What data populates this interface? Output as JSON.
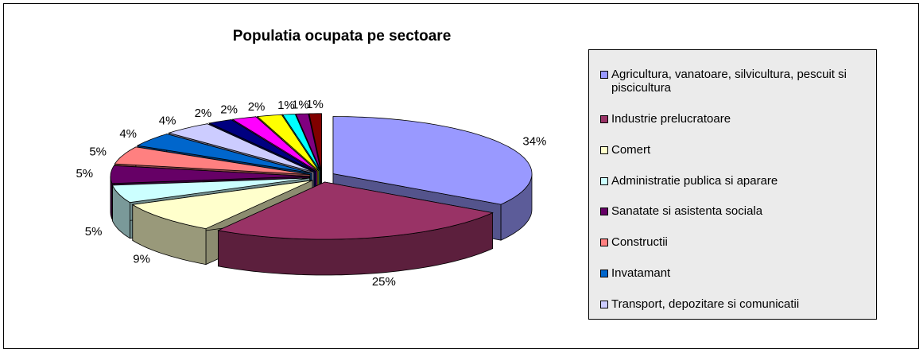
{
  "chart_data": {
    "type": "pie3d",
    "title": "Populatia ocupata pe sectoare",
    "categories": [
      "Agricultura, vanatoare, silvicultura, pescuit si piscicultura",
      "Industrie prelucratoare",
      "Comert",
      "Administratie publica si aparare",
      "Sanatate si asistenta sociala",
      "Constructii",
      "Invatamant",
      "Transport, depozitare si comunicatii",
      null,
      null,
      null,
      null,
      null,
      null
    ],
    "values": [
      34,
      25,
      9,
      5,
      5,
      5,
      4,
      4,
      2,
      2,
      2,
      1,
      1,
      1
    ],
    "value_labels": [
      "34%",
      "25%",
      "9%",
      "5%",
      "5%",
      "5%",
      "4%",
      "4%",
      "2%",
      "2%",
      "2%",
      "1%",
      "1%",
      "1%"
    ],
    "colors": [
      "#9999ff",
      "#993366",
      "#ffffcc",
      "#ccffff",
      "#660066",
      "#ff8080",
      "#0066cc",
      "#ccccff",
      "#000080",
      "#ff00ff",
      "#ffff00",
      "#00ffff",
      "#800080",
      "#800000"
    ],
    "legend": "right"
  }
}
